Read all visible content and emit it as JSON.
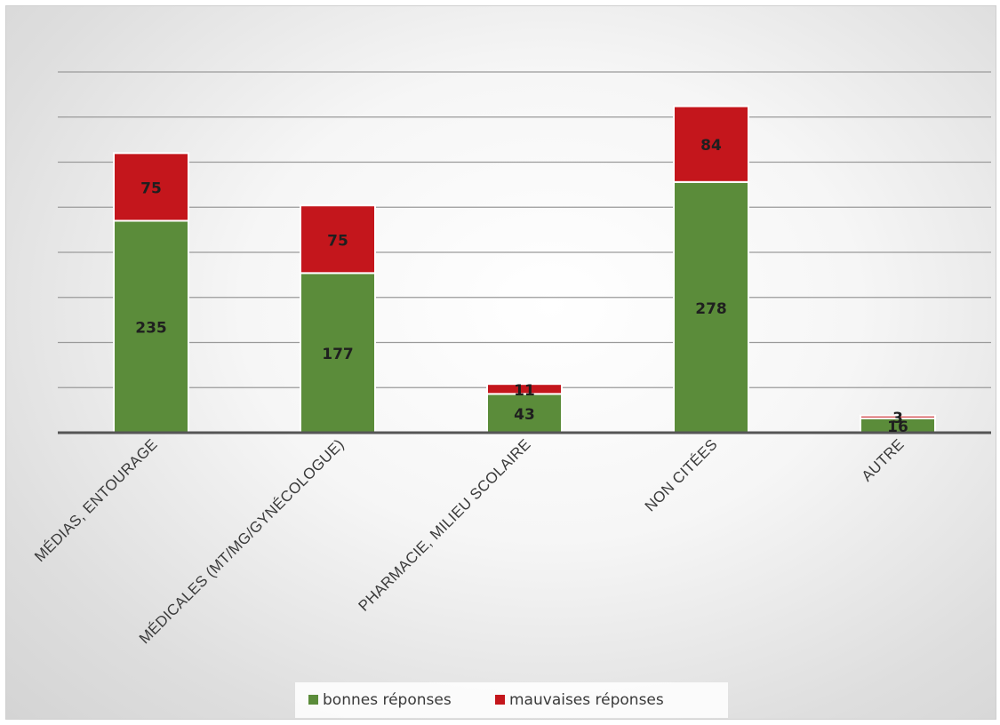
{
  "chart_data": {
    "type": "bar",
    "stacked": true,
    "categories": [
      "MÉDIAS, ENTOURAGE",
      "MÉDICALES (MT/MG/GYNÉCOLOGUE)",
      "PHARMACIE, MILIEU SCOLAIRE",
      "NON CITÉES",
      "AUTRE"
    ],
    "series": [
      {
        "name": "bonnes réponses",
        "values": [
          235,
          177,
          43,
          278,
          16
        ],
        "color": "#5b8c3a"
      },
      {
        "name": "mauvaises réponses",
        "values": [
          75,
          75,
          11,
          84,
          3
        ],
        "color": "#c4161c"
      }
    ],
    "ylim": [
      0,
      400
    ],
    "y_gridline_step": 50,
    "grid": true,
    "legend_position": "bottom",
    "title": "",
    "xlabel": "",
    "ylabel": ""
  }
}
